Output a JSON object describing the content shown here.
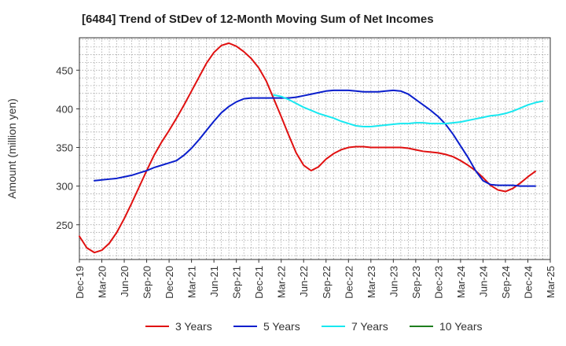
{
  "chart_data": {
    "type": "line",
    "title": "[6484]  Trend of StDev of 12-Month Moving Sum of Net Incomes",
    "xlabel": "",
    "ylabel": "Amount (million yen)",
    "x_ticks": [
      "Dec-19",
      "Mar-20",
      "Jun-20",
      "Sep-20",
      "Dec-20",
      "Mar-21",
      "Jun-21",
      "Sep-21",
      "Dec-21",
      "Mar-22",
      "Jun-22",
      "Sep-22",
      "Dec-22",
      "Mar-23",
      "Jun-23",
      "Sep-23",
      "Dec-23",
      "Mar-24",
      "Jun-24",
      "Sep-24",
      "Dec-24",
      "Mar-25"
    ],
    "y_ticks": [
      250,
      300,
      350,
      400,
      450
    ],
    "xlim": [
      "2019-12",
      "2025-03"
    ],
    "ylim": [
      205,
      492
    ],
    "grid": true,
    "legend_position": "bottom",
    "series": [
      {
        "name": "3 Years",
        "color": "#e01010",
        "points": [
          [
            "2019-12",
            235
          ],
          [
            "2020-01",
            220
          ],
          [
            "2020-02",
            214
          ],
          [
            "2020-03",
            217
          ],
          [
            "2020-04",
            226
          ],
          [
            "2020-05",
            240
          ],
          [
            "2020-06",
            258
          ],
          [
            "2020-07",
            278
          ],
          [
            "2020-08",
            299
          ],
          [
            "2020-09",
            320
          ],
          [
            "2020-10",
            340
          ],
          [
            "2020-11",
            357
          ],
          [
            "2020-12",
            372
          ],
          [
            "2021-01",
            388
          ],
          [
            "2021-02",
            405
          ],
          [
            "2021-03",
            423
          ],
          [
            "2021-04",
            441
          ],
          [
            "2021-05",
            459
          ],
          [
            "2021-06",
            473
          ],
          [
            "2021-07",
            482
          ],
          [
            "2021-08",
            485
          ],
          [
            "2021-09",
            481
          ],
          [
            "2021-10",
            474
          ],
          [
            "2021-11",
            465
          ],
          [
            "2021-12",
            453
          ],
          [
            "2022-01",
            436
          ],
          [
            "2022-02",
            413
          ],
          [
            "2022-03",
            390
          ],
          [
            "2022-04",
            366
          ],
          [
            "2022-05",
            343
          ],
          [
            "2022-06",
            327
          ],
          [
            "2022-07",
            320
          ],
          [
            "2022-08",
            325
          ],
          [
            "2022-09",
            335
          ],
          [
            "2022-10",
            342
          ],
          [
            "2022-11",
            347
          ],
          [
            "2022-12",
            350
          ],
          [
            "2023-01",
            351
          ],
          [
            "2023-02",
            351
          ],
          [
            "2023-03",
            350
          ],
          [
            "2023-04",
            350
          ],
          [
            "2023-05",
            350
          ],
          [
            "2023-06",
            350
          ],
          [
            "2023-07",
            350
          ],
          [
            "2023-08",
            349
          ],
          [
            "2023-09",
            347
          ],
          [
            "2023-10",
            345
          ],
          [
            "2023-11",
            344
          ],
          [
            "2023-12",
            343
          ],
          [
            "2024-01",
            341
          ],
          [
            "2024-02",
            338
          ],
          [
            "2024-03",
            333
          ],
          [
            "2024-04",
            327
          ],
          [
            "2024-05",
            320
          ],
          [
            "2024-06",
            311
          ],
          [
            "2024-07",
            301
          ],
          [
            "2024-08",
            295
          ],
          [
            "2024-09",
            293
          ],
          [
            "2024-10",
            297
          ],
          [
            "2024-11",
            304
          ],
          [
            "2024-12",
            312
          ],
          [
            "2025-01",
            319
          ]
        ]
      },
      {
        "name": "5 Years",
        "color": "#0a1ecc",
        "points": [
          [
            "2020-02",
            307
          ],
          [
            "2020-03",
            308
          ],
          [
            "2020-04",
            309
          ],
          [
            "2020-05",
            310
          ],
          [
            "2020-06",
            312
          ],
          [
            "2020-07",
            314
          ],
          [
            "2020-08",
            317
          ],
          [
            "2020-09",
            320
          ],
          [
            "2020-10",
            324
          ],
          [
            "2020-11",
            327
          ],
          [
            "2020-12",
            330
          ],
          [
            "2021-01",
            333
          ],
          [
            "2021-02",
            340
          ],
          [
            "2021-03",
            349
          ],
          [
            "2021-04",
            360
          ],
          [
            "2021-05",
            372
          ],
          [
            "2021-06",
            384
          ],
          [
            "2021-07",
            395
          ],
          [
            "2021-08",
            403
          ],
          [
            "2021-09",
            409
          ],
          [
            "2021-10",
            413
          ],
          [
            "2021-11",
            414
          ],
          [
            "2021-12",
            414
          ],
          [
            "2022-01",
            414
          ],
          [
            "2022-02",
            414
          ],
          [
            "2022-03",
            414
          ],
          [
            "2022-04",
            414
          ],
          [
            "2022-05",
            415
          ],
          [
            "2022-06",
            417
          ],
          [
            "2022-07",
            419
          ],
          [
            "2022-08",
            421
          ],
          [
            "2022-09",
            423
          ],
          [
            "2022-10",
            424
          ],
          [
            "2022-11",
            424
          ],
          [
            "2022-12",
            424
          ],
          [
            "2023-01",
            423
          ],
          [
            "2023-02",
            422
          ],
          [
            "2023-03",
            422
          ],
          [
            "2023-04",
            422
          ],
          [
            "2023-05",
            423
          ],
          [
            "2023-06",
            424
          ],
          [
            "2023-07",
            423
          ],
          [
            "2023-08",
            419
          ],
          [
            "2023-09",
            412
          ],
          [
            "2023-10",
            405
          ],
          [
            "2023-11",
            398
          ],
          [
            "2023-12",
            390
          ],
          [
            "2024-01",
            380
          ],
          [
            "2024-02",
            367
          ],
          [
            "2024-03",
            352
          ],
          [
            "2024-04",
            337
          ],
          [
            "2024-05",
            320
          ],
          [
            "2024-06",
            307
          ],
          [
            "2024-07",
            302
          ],
          [
            "2024-08",
            301
          ],
          [
            "2024-09",
            301
          ],
          [
            "2024-10",
            301
          ],
          [
            "2024-11",
            300
          ],
          [
            "2024-12",
            300
          ],
          [
            "2025-01",
            300
          ]
        ]
      },
      {
        "name": "7 Years",
        "color": "#18e8f0",
        "points": [
          [
            "2022-02",
            418
          ],
          [
            "2022-03",
            416
          ],
          [
            "2022-04",
            412
          ],
          [
            "2022-05",
            407
          ],
          [
            "2022-06",
            402
          ],
          [
            "2022-07",
            398
          ],
          [
            "2022-08",
            394
          ],
          [
            "2022-09",
            391
          ],
          [
            "2022-10",
            388
          ],
          [
            "2022-11",
            384
          ],
          [
            "2022-12",
            381
          ],
          [
            "2023-01",
            378
          ],
          [
            "2023-02",
            377
          ],
          [
            "2023-03",
            377
          ],
          [
            "2023-04",
            378
          ],
          [
            "2023-05",
            379
          ],
          [
            "2023-06",
            380
          ],
          [
            "2023-07",
            381
          ],
          [
            "2023-08",
            381
          ],
          [
            "2023-09",
            382
          ],
          [
            "2023-10",
            382
          ],
          [
            "2023-11",
            381
          ],
          [
            "2023-12",
            381
          ],
          [
            "2024-01",
            381
          ],
          [
            "2024-02",
            382
          ],
          [
            "2024-03",
            383
          ],
          [
            "2024-04",
            385
          ],
          [
            "2024-05",
            387
          ],
          [
            "2024-06",
            389
          ],
          [
            "2024-07",
            391
          ],
          [
            "2024-08",
            392
          ],
          [
            "2024-09",
            394
          ],
          [
            "2024-10",
            397
          ],
          [
            "2024-11",
            401
          ],
          [
            "2024-12",
            405
          ],
          [
            "2025-01",
            408
          ],
          [
            "2025-02",
            410
          ]
        ]
      },
      {
        "name": "10 Years",
        "color": "#1e7e1e",
        "points": []
      }
    ]
  }
}
